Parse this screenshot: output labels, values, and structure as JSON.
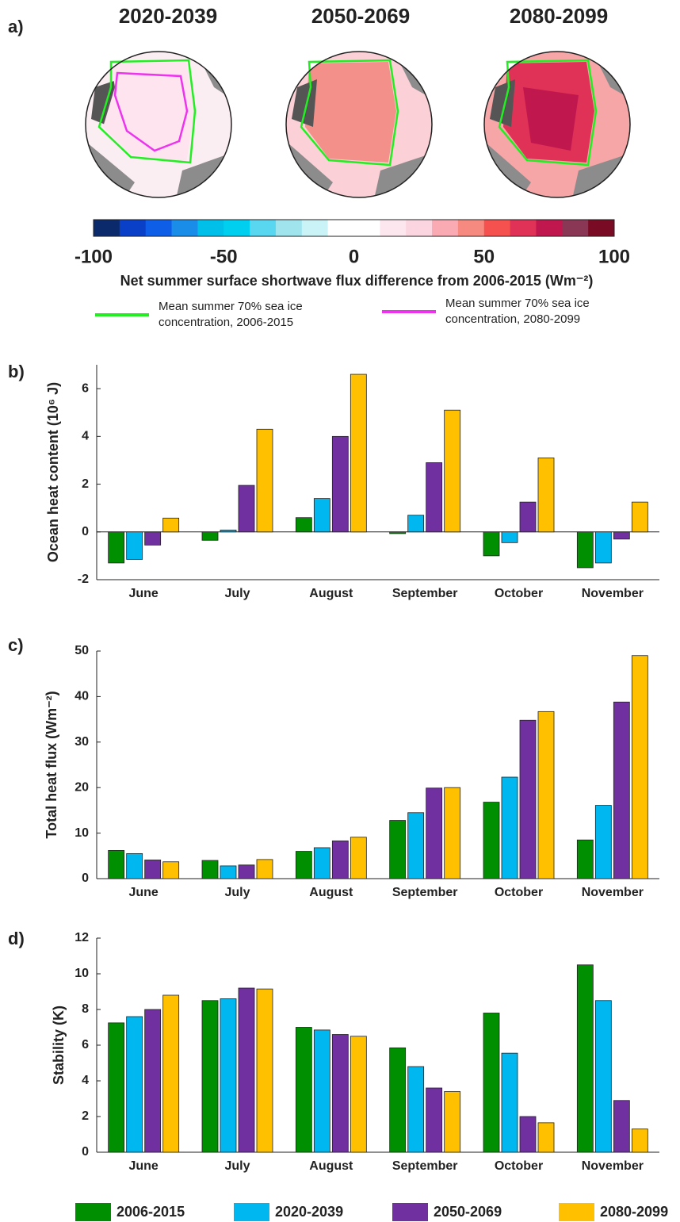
{
  "chart_data": [
    {
      "type": "map",
      "panel_label": "a)",
      "titles": [
        "2020-2039",
        "2050-2069",
        "2080-2099"
      ],
      "colorbar": {
        "lim": [
          -100,
          100
        ],
        "ticks": [
          -100,
          -50,
          0,
          50,
          100
        ],
        "colors": [
          "#0b2a6b",
          "#0a3fc8",
          "#0f5ee8",
          "#1a8de8",
          "#00bfe8",
          "#00cfef",
          "#5ad7f0",
          "#a0e4ee",
          "#c9f3f7",
          "#ffffff",
          "#ffffff",
          "#fde7ee",
          "#fbd5df",
          "#f9aab3",
          "#f78a80",
          "#f5524f",
          "#e03156",
          "#c0184e",
          "#8a3655",
          "#7a0b25"
        ]
      },
      "colorbar_label": "Net summer surface shortwave flux difference from 2006-2015 (Wm⁻²)",
      "contours": [
        {
          "name": "Mean summer 70% sea ice concentration, 2006-2015",
          "color": "#22ee22"
        },
        {
          "name": "Mean summer 70% sea ice concentration, 2080-2099",
          "color": "#ee33ee"
        }
      ]
    },
    {
      "type": "bar",
      "panel_label": "b)",
      "ylabel": "Ocean heat content (10⁶ J)",
      "categories": [
        "June",
        "July",
        "August",
        "September",
        "October",
        "November"
      ],
      "series": [
        {
          "name": "2006-2015",
          "color": "#008f00",
          "values": [
            -1.3,
            -0.35,
            0.6,
            -0.07,
            -1.0,
            -1.5
          ]
        },
        {
          "name": "2020-2039",
          "color": "#00b7f0",
          "values": [
            -1.15,
            0.08,
            1.4,
            0.7,
            -0.45,
            -1.3
          ]
        },
        {
          "name": "2050-2069",
          "color": "#7030a0",
          "values": [
            -0.55,
            1.95,
            4.0,
            2.9,
            1.25,
            -0.3
          ]
        },
        {
          "name": "2080-2099",
          "color": "#ffc000",
          "values": [
            0.58,
            4.3,
            6.6,
            5.1,
            3.1,
            1.25
          ]
        }
      ],
      "ylim": [
        -2,
        7
      ],
      "yticks": [
        -2,
        0,
        2,
        4,
        6
      ]
    },
    {
      "type": "bar",
      "panel_label": "c)",
      "ylabel": "Total heat flux (Wm⁻²)",
      "categories": [
        "June",
        "July",
        "August",
        "September",
        "October",
        "November"
      ],
      "series": [
        {
          "name": "2006-2015",
          "color": "#008f00",
          "values": [
            6.2,
            4.0,
            6.0,
            12.8,
            16.8,
            8.5
          ]
        },
        {
          "name": "2020-2039",
          "color": "#00b7f0",
          "values": [
            5.5,
            2.8,
            6.8,
            14.5,
            22.3,
            16.1
          ]
        },
        {
          "name": "2050-2069",
          "color": "#7030a0",
          "values": [
            4.1,
            3.0,
            8.3,
            19.9,
            34.8,
            38.8
          ]
        },
        {
          "name": "2080-2099",
          "color": "#ffc000",
          "values": [
            3.7,
            4.2,
            9.1,
            20.0,
            36.7,
            49.0
          ]
        }
      ],
      "ylim": [
        0,
        50
      ],
      "yticks": [
        0,
        10,
        20,
        30,
        40,
        50
      ]
    },
    {
      "type": "bar",
      "panel_label": "d)",
      "ylabel": "Stability (K)",
      "categories": [
        "June",
        "July",
        "August",
        "September",
        "October",
        "November"
      ],
      "series": [
        {
          "name": "2006-2015",
          "color": "#008f00",
          "values": [
            7.25,
            8.5,
            7.0,
            5.85,
            7.8,
            10.5
          ]
        },
        {
          "name": "2020-2039",
          "color": "#00b7f0",
          "values": [
            7.6,
            8.6,
            6.85,
            4.8,
            5.55,
            8.5
          ]
        },
        {
          "name": "2050-2069",
          "color": "#7030a0",
          "values": [
            8.0,
            9.2,
            6.6,
            3.6,
            2.0,
            2.9
          ]
        },
        {
          "name": "2080-2099",
          "color": "#ffc000",
          "values": [
            8.8,
            9.15,
            6.5,
            3.4,
            1.65,
            1.3
          ]
        }
      ],
      "ylim": [
        0,
        12
      ],
      "yticks": [
        0,
        2,
        4,
        6,
        8,
        10,
        12
      ]
    }
  ]
}
